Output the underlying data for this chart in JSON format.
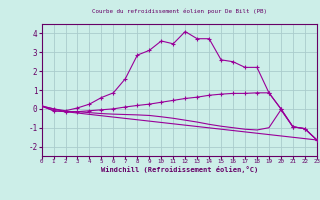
{
  "title": "Courbe du refroidissement éolien pour De Bilt (PB)",
  "xlabel": "Windchill (Refroidissement éolien,°C)",
  "bg_color": "#cceee8",
  "grid_color": "#aacccc",
  "line_color": "#990099",
  "spine_color": "#660066",
  "xlim": [
    0,
    23
  ],
  "ylim": [
    -2.5,
    4.5
  ],
  "xticks": [
    0,
    1,
    2,
    3,
    4,
    5,
    6,
    7,
    8,
    9,
    10,
    11,
    12,
    13,
    14,
    15,
    16,
    17,
    18,
    19,
    20,
    21,
    22,
    23
  ],
  "yticks": [
    -2,
    -1,
    0,
    1,
    2,
    3,
    4
  ],
  "curve1_x": [
    0,
    1,
    2,
    3,
    4,
    5,
    6,
    7,
    8,
    9,
    10,
    11,
    12,
    13,
    14,
    15,
    16,
    17,
    18,
    19,
    20,
    21,
    22,
    23
  ],
  "curve1_y": [
    0.15,
    0.0,
    -0.1,
    0.05,
    0.25,
    0.6,
    0.85,
    1.6,
    2.85,
    3.1,
    3.6,
    3.45,
    4.1,
    3.72,
    3.72,
    2.6,
    2.5,
    2.2,
    2.2,
    0.85,
    0.0,
    -0.95,
    -1.05,
    -1.65
  ],
  "curve2_x": [
    0,
    1,
    2,
    3,
    4,
    5,
    6,
    7,
    8,
    9,
    10,
    11,
    12,
    13,
    14,
    15,
    16,
    17,
    18,
    19,
    20,
    21,
    22,
    23
  ],
  "curve2_y": [
    0.15,
    -0.1,
    -0.15,
    -0.15,
    -0.1,
    -0.05,
    0.0,
    0.1,
    0.18,
    0.25,
    0.35,
    0.45,
    0.55,
    0.62,
    0.72,
    0.78,
    0.82,
    0.82,
    0.85,
    0.85,
    0.0,
    -0.95,
    -1.05,
    -1.65
  ],
  "curve3_x": [
    0,
    1,
    2,
    3,
    4,
    5,
    6,
    7,
    8,
    9,
    10,
    11,
    12,
    13,
    14,
    15,
    16,
    17,
    18,
    19,
    20,
    21,
    22,
    23
  ],
  "curve3_y": [
    0.15,
    -0.1,
    -0.15,
    -0.15,
    -0.2,
    -0.25,
    -0.28,
    -0.3,
    -0.32,
    -0.35,
    -0.42,
    -0.5,
    -0.6,
    -0.7,
    -0.82,
    -0.92,
    -1.0,
    -1.08,
    -1.12,
    -1.0,
    -0.05,
    -0.95,
    -1.05,
    -1.65
  ],
  "curve4_x": [
    0,
    2,
    23
  ],
  "curve4_y": [
    0.15,
    -0.15,
    -1.65
  ]
}
